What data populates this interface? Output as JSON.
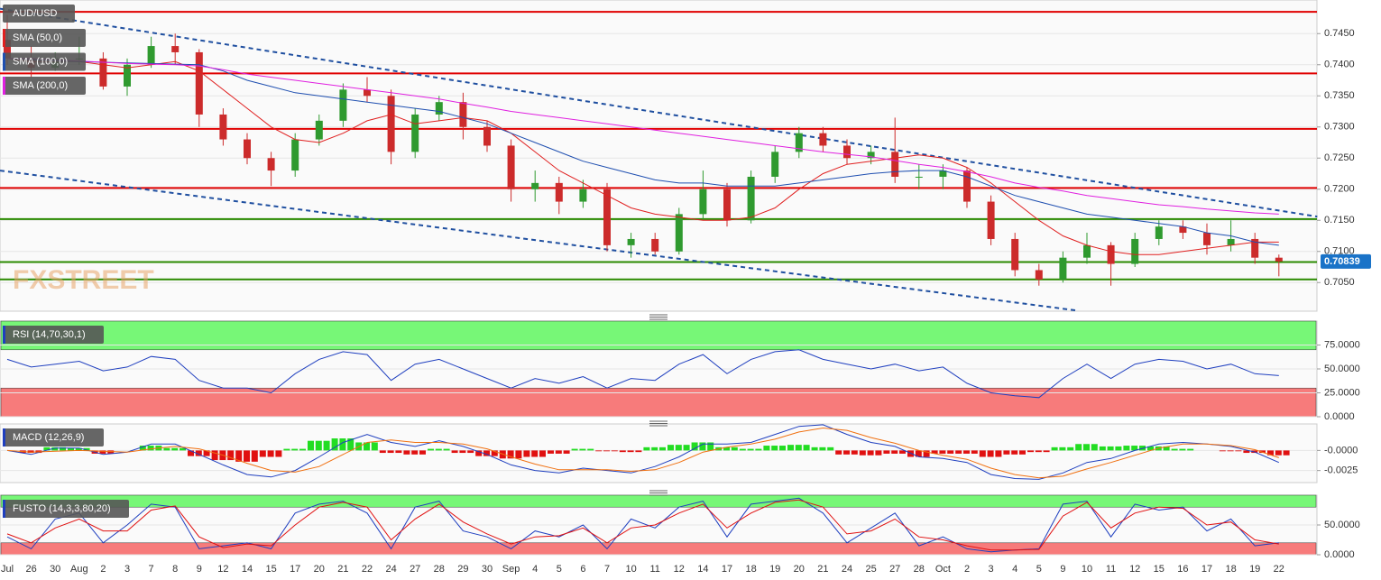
{
  "chart_data": [
    {
      "type": "candlestick",
      "symbol": "AUD/USD",
      "categories": [
        "Jul",
        "26",
        "30",
        "Aug",
        "2",
        "3",
        "7",
        "8",
        "9",
        "12",
        "14",
        "15",
        "17",
        "20",
        "21",
        "22",
        "24",
        "27",
        "28",
        "29",
        "30",
        "Sep",
        "4",
        "5",
        "6",
        "7",
        "10",
        "11",
        "12",
        "14",
        "17",
        "18",
        "19",
        "20",
        "21",
        "24",
        "25",
        "27",
        "28",
        "Oct",
        "2",
        "3",
        "4",
        "5",
        "9",
        "10",
        "11",
        "12",
        "15",
        "16",
        "17",
        "18",
        "19",
        "22"
      ],
      "open": [
        0.744,
        0.741,
        0.7395,
        0.741,
        0.741,
        0.7365,
        0.74,
        0.743,
        0.742,
        0.732,
        0.728,
        0.725,
        0.723,
        0.728,
        0.731,
        0.736,
        0.735,
        0.726,
        0.732,
        0.734,
        0.73,
        0.727,
        0.72,
        0.721,
        0.718,
        0.72,
        0.711,
        0.712,
        0.71,
        0.716,
        0.72,
        0.715,
        0.722,
        0.726,
        0.729,
        0.727,
        0.725,
        0.726,
        0.722,
        0.722,
        0.723,
        0.718,
        0.712,
        0.707,
        0.7055,
        0.709,
        0.711,
        0.708,
        0.712,
        0.714,
        0.713,
        0.711,
        0.712,
        0.709
      ],
      "high": [
        0.748,
        0.743,
        0.742,
        0.7445,
        0.742,
        0.741,
        0.7445,
        0.745,
        0.7425,
        0.733,
        0.729,
        0.726,
        0.729,
        0.732,
        0.737,
        0.738,
        0.736,
        0.733,
        0.735,
        0.7355,
        0.731,
        0.728,
        0.723,
        0.722,
        0.7215,
        0.721,
        0.713,
        0.713,
        0.717,
        0.723,
        0.721,
        0.723,
        0.727,
        0.73,
        0.73,
        0.728,
        0.727,
        0.7315,
        0.724,
        0.724,
        0.7235,
        0.719,
        0.713,
        0.708,
        0.71,
        0.713,
        0.7115,
        0.713,
        0.715,
        0.715,
        0.7145,
        0.715,
        0.713,
        0.7095
      ],
      "low": [
        0.74,
        0.738,
        0.739,
        0.74,
        0.736,
        0.735,
        0.7395,
        0.74,
        0.73,
        0.727,
        0.724,
        0.7205,
        0.722,
        0.727,
        0.73,
        0.734,
        0.724,
        0.725,
        0.731,
        0.728,
        0.726,
        0.718,
        0.718,
        0.716,
        0.717,
        0.71,
        0.709,
        0.7095,
        0.7095,
        0.715,
        0.714,
        0.7145,
        0.721,
        0.725,
        0.726,
        0.724,
        0.724,
        0.721,
        0.72,
        0.72,
        0.717,
        0.711,
        0.706,
        0.7045,
        0.705,
        0.708,
        0.7045,
        0.7075,
        0.711,
        0.712,
        0.7095,
        0.71,
        0.708,
        0.706
      ],
      "close": [
        0.741,
        0.7395,
        0.741,
        0.741,
        0.7365,
        0.74,
        0.743,
        0.742,
        0.732,
        0.728,
        0.725,
        0.723,
        0.728,
        0.731,
        0.736,
        0.735,
        0.726,
        0.732,
        0.734,
        0.73,
        0.727,
        0.72,
        0.721,
        0.718,
        0.72,
        0.711,
        0.712,
        0.71,
        0.716,
        0.72,
        0.715,
        0.722,
        0.726,
        0.729,
        0.727,
        0.725,
        0.726,
        0.722,
        0.722,
        0.723,
        0.718,
        0.712,
        0.707,
        0.7055,
        0.709,
        0.711,
        0.708,
        0.712,
        0.714,
        0.713,
        0.711,
        0.712,
        0.709,
        0.7084
      ],
      "up_color": "#2f9a2f",
      "down_color": "#cc2b2b",
      "series": [
        {
          "name": "SMA (50,0)",
          "color": "#e02020",
          "values": [
            0.741,
            0.7405,
            0.7405,
            0.7405,
            0.74,
            0.7395,
            0.74,
            0.7405,
            0.739,
            0.736,
            0.733,
            0.73,
            0.728,
            0.7275,
            0.729,
            0.731,
            0.732,
            0.7305,
            0.731,
            0.7315,
            0.731,
            0.729,
            0.726,
            0.723,
            0.721,
            0.719,
            0.717,
            0.716,
            0.7155,
            0.715,
            0.715,
            0.7155,
            0.717,
            0.72,
            0.7225,
            0.724,
            0.7245,
            0.725,
            0.7255,
            0.725,
            0.7235,
            0.721,
            0.718,
            0.715,
            0.7125,
            0.711,
            0.71,
            0.7095,
            0.7095,
            0.71,
            0.7105,
            0.711,
            0.7115,
            0.7115
          ]
        },
        {
          "name": "SMA (100,0)",
          "color": "#1f4fb0",
          "values": [
            0.741,
            0.7408,
            0.7406,
            0.7405,
            0.7404,
            0.7403,
            0.7402,
            0.7401,
            0.74,
            0.739,
            0.7375,
            0.7365,
            0.7355,
            0.735,
            0.7345,
            0.734,
            0.7335,
            0.733,
            0.7325,
            0.7315,
            0.7305,
            0.729,
            0.7275,
            0.726,
            0.7245,
            0.7235,
            0.7225,
            0.7215,
            0.721,
            0.721,
            0.7205,
            0.7205,
            0.7205,
            0.721,
            0.7215,
            0.722,
            0.7225,
            0.7228,
            0.723,
            0.723,
            0.722,
            0.7205,
            0.719,
            0.718,
            0.717,
            0.716,
            0.7155,
            0.715,
            0.7145,
            0.714,
            0.713,
            0.7125,
            0.7115,
            0.711
          ]
        },
        {
          "name": "SMA (200,0)",
          "color": "#e020e0",
          "values": [
            0.741,
            0.741,
            0.7408,
            0.7406,
            0.7404,
            0.7402,
            0.7401,
            0.74,
            0.7398,
            0.7392,
            0.7385,
            0.738,
            0.7375,
            0.737,
            0.7365,
            0.736,
            0.7355,
            0.735,
            0.7345,
            0.7338,
            0.7332,
            0.7325,
            0.732,
            0.7315,
            0.731,
            0.7305,
            0.73,
            0.7295,
            0.729,
            0.7285,
            0.728,
            0.7275,
            0.727,
            0.7265,
            0.726,
            0.7256,
            0.7252,
            0.7246,
            0.724,
            0.7235,
            0.7228,
            0.722,
            0.721,
            0.7203,
            0.7197,
            0.719,
            0.7185,
            0.718,
            0.7175,
            0.7172,
            0.7168,
            0.7165,
            0.7162,
            0.716
          ]
        }
      ],
      "ylim": [
        0.7004,
        0.7504
      ],
      "yticks": [
        {
          "value": 0.745,
          "label": "0.7450"
        },
        {
          "value": 0.74,
          "label": "0.7400"
        },
        {
          "value": 0.735,
          "label": "0.7350"
        },
        {
          "value": 0.73,
          "label": "0.7300"
        },
        {
          "value": 0.725,
          "label": "0.7250"
        },
        {
          "value": 0.72,
          "label": "0.7200"
        },
        {
          "value": 0.715,
          "label": "0.7150"
        },
        {
          "value": 0.71,
          "label": "0.7100"
        },
        {
          "value": 0.705,
          "label": "0.7050"
        }
      ],
      "levels": [
        {
          "value": 0.7485,
          "color": "#e00000"
        },
        {
          "value": 0.7386,
          "color": "#e00000"
        },
        {
          "value": 0.7297,
          "color": "#e00000"
        },
        {
          "value": 0.7202,
          "color": "#e00000"
        },
        {
          "value": 0.7152,
          "color": "#2a8a00"
        },
        {
          "value": 0.7083,
          "color": "#2a8a00"
        },
        {
          "value": 0.7055,
          "color": "#2a8a00"
        }
      ],
      "trendlines": [
        {
          "from": [
            -0.3,
            0.749
          ],
          "to": [
            54.6,
            0.7156
          ],
          "color": "#1f4fa0"
        },
        {
          "from": [
            -0.3,
            0.723
          ],
          "to": [
            44.6,
            0.7005
          ],
          "color": "#1f4fa0"
        }
      ],
      "last_price": 0.70839,
      "last_price_color": "#1a73c8"
    },
    {
      "type": "line",
      "name": "RSI (14,70,30,1)",
      "series": [
        {
          "color": "#1f3fbf",
          "values": [
            60,
            52,
            55,
            58,
            48,
            52,
            63,
            60,
            38,
            30,
            30,
            25,
            45,
            60,
            68,
            65,
            38,
            55,
            60,
            50,
            40,
            30,
            40,
            35,
            42,
            30,
            40,
            38,
            55,
            65,
            45,
            60,
            68,
            70,
            60,
            55,
            50,
            55,
            48,
            52,
            35,
            25,
            22,
            20,
            40,
            55,
            40,
            55,
            60,
            58,
            50,
            55,
            45,
            43
          ]
        }
      ],
      "ylim": [
        0,
        100
      ],
      "yticks": [
        {
          "value": 75,
          "label": "75.0000"
        },
        {
          "value": 50,
          "label": "50.0000"
        },
        {
          "value": 25,
          "label": "25.0000"
        },
        {
          "value": 0,
          "label": "0.0000"
        }
      ],
      "overbought": 70,
      "oversold": 30,
      "zone_colors": [
        "#77f777",
        "#f77b7b"
      ]
    },
    {
      "type": "macd",
      "name": "MACD (12,26,9)",
      "series": [
        {
          "color": "#1f3fbf",
          "values": [
            0,
            -0.0005,
            0.0003,
            0.0003,
            -0.0005,
            -0.0002,
            0.0008,
            0.0008,
            -0.0005,
            -0.0018,
            -0.003,
            -0.0033,
            -0.0025,
            -0.0008,
            0.001,
            0.002,
            0.001,
            0.0005,
            0.0012,
            0.0005,
            -0.0005,
            -0.0018,
            -0.0025,
            -0.0028,
            -0.0022,
            -0.0025,
            -0.0028,
            -0.002,
            -0.0008,
            0.0008,
            0.0008,
            0.001,
            0.002,
            0.003,
            0.0032,
            0.002,
            0.001,
            0.0005,
            -0.0008,
            -0.001,
            -0.0015,
            -0.003,
            -0.0035,
            -0.0036,
            -0.0028,
            -0.0015,
            -0.001,
            0,
            0.0008,
            0.001,
            0.0008,
            0.0005,
            -0.0002,
            -0.0015
          ]
        },
        {
          "color": "#f07010",
          "values": [
            0,
            -0.0002,
            -0.0001,
            0,
            -0.0001,
            -0.0002,
            0.0002,
            0.0005,
            0.0002,
            -0.0006,
            -0.0016,
            -0.0025,
            -0.0027,
            -0.002,
            -0.0005,
            0.001,
            0.0013,
            0.001,
            0.001,
            0.0008,
            0.0002,
            -0.0008,
            -0.0017,
            -0.0024,
            -0.0024,
            -0.0024,
            -0.0026,
            -0.0024,
            -0.0015,
            -0.0002,
            0.0004,
            0.0008,
            0.0014,
            0.0023,
            0.0028,
            0.0025,
            0.0016,
            0.0009,
            0,
            -0.0006,
            -0.0011,
            -0.0022,
            -0.003,
            -0.0034,
            -0.0032,
            -0.0023,
            -0.0015,
            -0.0006,
            0.0003,
            0.0008,
            0.0008,
            0.0006,
            0.0001,
            -0.0009
          ]
        }
      ],
      "histogram": {
        "up_color": "#22dd22",
        "down_color": "#e01010",
        "values": [
          0,
          -0.0003,
          0.0004,
          0.0003,
          -0.0004,
          0,
          0.0006,
          0.0003,
          -0.0007,
          -0.0012,
          -0.0014,
          -0.0008,
          0.0002,
          0.0012,
          0.0015,
          0.001,
          -0.0003,
          -0.0005,
          0.0002,
          -0.0003,
          -0.0007,
          -0.001,
          -0.0008,
          -0.0004,
          0.0002,
          -0.0001,
          -0.0002,
          0.0004,
          0.0007,
          0.001,
          0.0004,
          0.0002,
          0.0006,
          0.0007,
          0.0004,
          -0.0005,
          -0.0006,
          -0.0004,
          -0.0008,
          -0.0004,
          -0.0004,
          -0.0008,
          -0.0005,
          -0.0002,
          0.0004,
          0.0008,
          0.0005,
          0.0006,
          0.0005,
          0.0002,
          0,
          -0.0001,
          -0.0003,
          -0.0006
        ]
      },
      "ylim": [
        -0.004,
        0.0033
      ],
      "yticks": [
        {
          "value": 0,
          "label": "-0.0000"
        },
        {
          "value": -0.0025,
          "label": "-0.0025"
        }
      ]
    },
    {
      "type": "line",
      "name": "FUSTO (14,3,3,80,20)",
      "series": [
        {
          "color": "#1f3fbf",
          "values": [
            30,
            10,
            60,
            70,
            20,
            50,
            85,
            80,
            10,
            15,
            20,
            10,
            70,
            85,
            90,
            70,
            10,
            80,
            90,
            40,
            30,
            10,
            40,
            30,
            50,
            10,
            60,
            45,
            80,
            90,
            30,
            85,
            90,
            95,
            70,
            20,
            45,
            70,
            15,
            30,
            10,
            5,
            8,
            10,
            85,
            90,
            30,
            85,
            75,
            80,
            40,
            60,
            15,
            20
          ]
        },
        {
          "color": "#e01010",
          "values": [
            35,
            20,
            45,
            60,
            40,
            40,
            75,
            82,
            30,
            12,
            18,
            15,
            50,
            80,
            88,
            80,
            25,
            60,
            85,
            55,
            35,
            18,
            30,
            32,
            45,
            20,
            45,
            50,
            70,
            85,
            45,
            70,
            88,
            92,
            80,
            35,
            40,
            60,
            30,
            25,
            15,
            8,
            8,
            9,
            65,
            88,
            45,
            70,
            80,
            78,
            50,
            55,
            25,
            18
          ]
        }
      ],
      "ylim": [
        0,
        100
      ],
      "yticks": [
        {
          "value": 50,
          "label": "50.0000"
        },
        {
          "value": 0,
          "label": "0.0000"
        }
      ],
      "overbought": 80,
      "oversold": 20,
      "zone_colors": [
        "#77f777",
        "#f77b7b"
      ]
    }
  ],
  "watermark": "FXSTREET"
}
